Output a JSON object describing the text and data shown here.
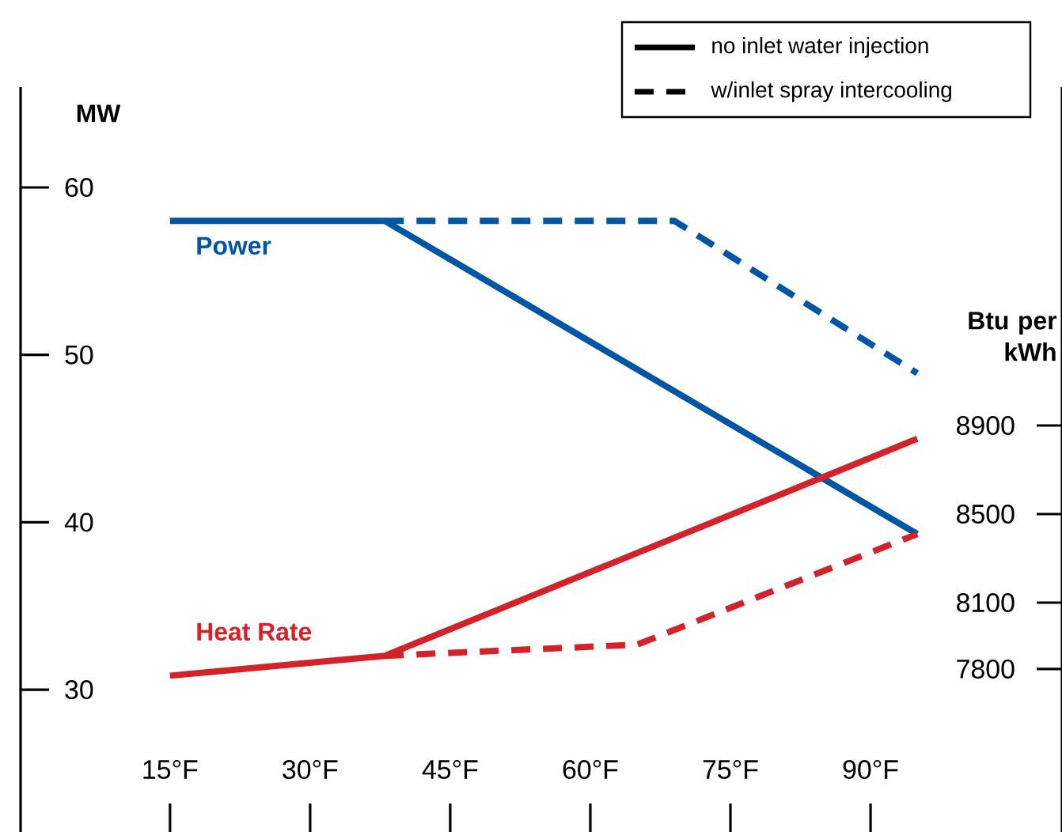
{
  "chart_data": {
    "type": "line",
    "ylabel": "MW",
    "y2label": "Btu per kWh",
    "xlim": [
      -1,
      110.5
    ],
    "ylim": [
      21.5,
      66
    ],
    "y2lim": [
      7064,
      10429
    ],
    "xticks": [
      {
        "value": 15,
        "label": "15°F"
      },
      {
        "value": 30,
        "label": "30°F"
      },
      {
        "value": 45,
        "label": "45°F"
      },
      {
        "value": 60,
        "label": "60°F"
      },
      {
        "value": 75,
        "label": "75°F"
      },
      {
        "value": 90,
        "label": "90°F"
      }
    ],
    "yticks": [
      30,
      40,
      50,
      60
    ],
    "y2ticks": [
      7800,
      8100,
      8500,
      8900
    ],
    "series": [
      {
        "name": "Power",
        "color": "#0055a5",
        "line_style": "solid",
        "x": [
          15,
          38,
          95
        ],
        "values": [
          58,
          58,
          39.3
        ]
      },
      {
        "color": "#0055a5",
        "line_style": "dashed",
        "x": [
          38,
          69,
          95
        ],
        "values": [
          58,
          58,
          48.9
        ]
      },
      {
        "name": "Heat Rate",
        "color": "#d3222a",
        "line_style": "solid",
        "axis": "y2",
        "x": [
          15,
          38,
          95
        ],
        "values": [
          7770,
          7860,
          8840
        ]
      },
      {
        "color": "#d3222a",
        "line_style": "dashed",
        "axis": "y2",
        "x": [
          38,
          65,
          95
        ],
        "values": [
          7860,
          7910,
          8410
        ]
      }
    ],
    "annotations": [
      "no inlet water injection",
      "w/inlet spray intercooling"
    ],
    "grid": false,
    "marker": "none"
  }
}
